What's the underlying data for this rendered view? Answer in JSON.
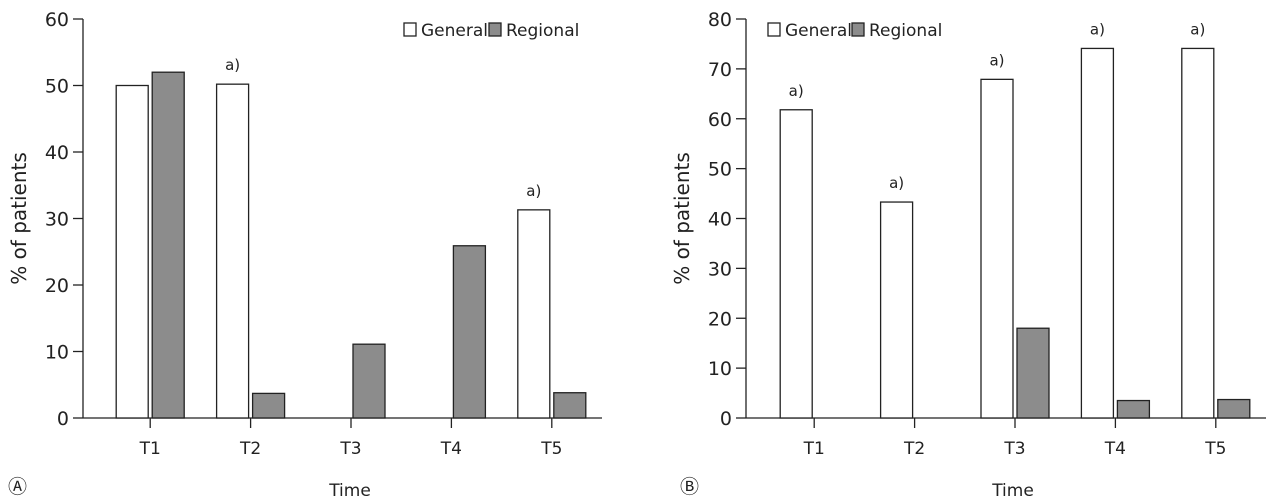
{
  "colors": {
    "general": "#ffffff",
    "regional": "#8c8c8c",
    "stroke": "#222222"
  },
  "chart_data": [
    {
      "type": "bar",
      "panel_label": "Ⓐ",
      "categories": [
        "T1",
        "T2",
        "T3",
        "T4",
        "T5"
      ],
      "series": [
        {
          "name": "General",
          "values": [
            50,
            50.2,
            0,
            0,
            31.3
          ]
        },
        {
          "name": "Regional",
          "values": [
            52,
            3.7,
            11.1,
            25.9,
            3.8
          ]
        }
      ],
      "annotations": [
        {
          "category": "T2",
          "series": "General",
          "text": "a)"
        },
        {
          "category": "T5",
          "series": "General",
          "text": "a)"
        }
      ],
      "xlabel": "Time",
      "ylabel": "% of patients",
      "ylim": [
        0,
        60
      ],
      "yticks": [
        0,
        10,
        20,
        30,
        40,
        50,
        60
      ],
      "legend": "top-right",
      "grid": false
    },
    {
      "type": "bar",
      "panel_label": "Ⓑ",
      "categories": [
        "T1",
        "T2",
        "T3",
        "T4",
        "T5"
      ],
      "series": [
        {
          "name": "General",
          "values": [
            61.8,
            43.3,
            67.9,
            74.1,
            74.1
          ]
        },
        {
          "name": "Regional",
          "values": [
            0,
            0,
            18,
            3.5,
            3.7
          ]
        }
      ],
      "annotations": [
        {
          "category": "T1",
          "series": "General",
          "text": "a)"
        },
        {
          "category": "T2",
          "series": "General",
          "text": "a)"
        },
        {
          "category": "T3",
          "series": "General",
          "text": "a)"
        },
        {
          "category": "T4",
          "series": "General",
          "text": "a)"
        },
        {
          "category": "T5",
          "series": "General",
          "text": "a)"
        }
      ],
      "xlabel": "Time",
      "ylabel": "% of patients",
      "ylim": [
        0,
        80
      ],
      "yticks": [
        0,
        10,
        20,
        30,
        40,
        50,
        60,
        70,
        80
      ],
      "legend": "top-left",
      "grid": false
    }
  ]
}
